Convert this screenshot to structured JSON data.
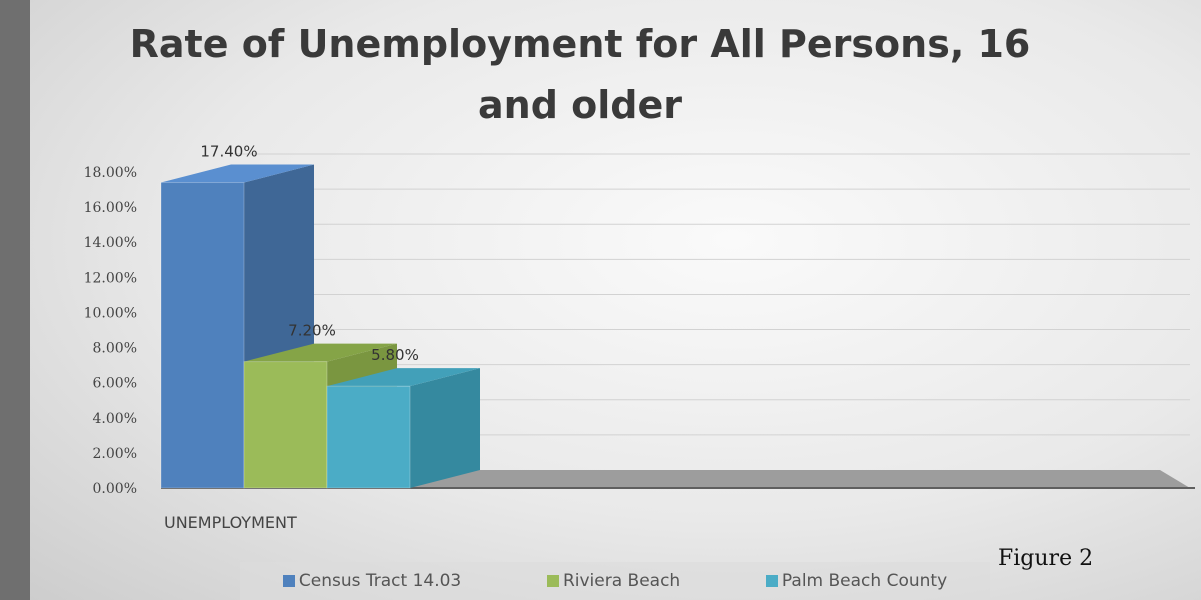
{
  "chart_data": {
    "type": "bar",
    "title_lines": [
      "Rate of Unemployment for All Persons, 16",
      "and older"
    ],
    "categories": [
      "UNEMPLOYMENT"
    ],
    "series": [
      {
        "name": "Census Tract 14.03",
        "values": [
          17.4
        ],
        "label": "17.40%",
        "color": "#4f81bd",
        "side": "#3f6796",
        "top": "#5a8fd0"
      },
      {
        "name": "Riviera Beach",
        "values": [
          7.2
        ],
        "label": "7.20%",
        "color": "#9bbb59",
        "side": "#7a9640",
        "top": "#85a447"
      },
      {
        "name": "Palm Beach County",
        "values": [
          5.8
        ],
        "label": "5.80%",
        "color": "#4bacc6",
        "side": "#35899f",
        "top": "#42a0b9"
      }
    ],
    "yticks": [
      "0.00%",
      "2.00%",
      "4.00%",
      "6.00%",
      "8.00%",
      "10.00%",
      "12.00%",
      "14.00%",
      "16.00%",
      "18.00%"
    ],
    "ylim": [
      0,
      18
    ],
    "legend_position": "bottom",
    "grid": true
  },
  "caption": "Figure 2"
}
